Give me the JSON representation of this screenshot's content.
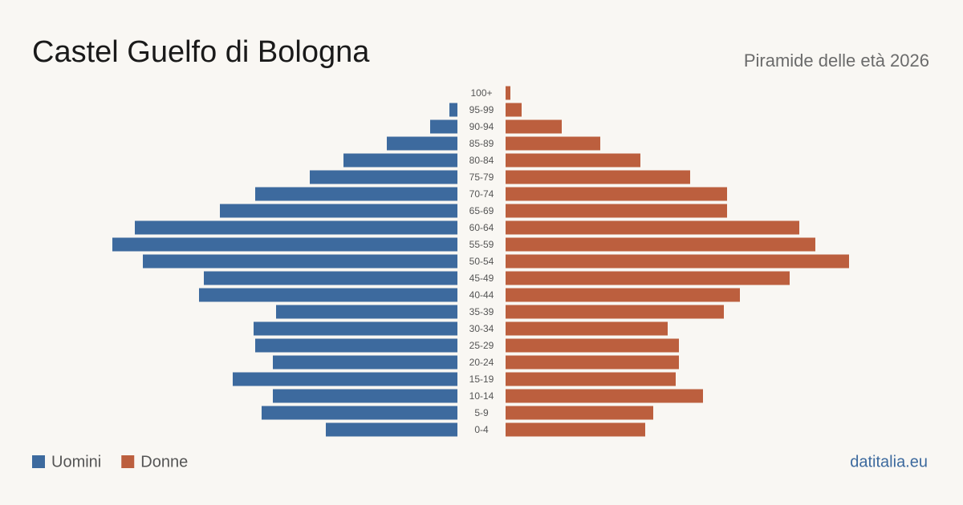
{
  "chart_data": {
    "type": "pyramid",
    "title": "Castel Guelfo di Bologna",
    "subtitle": "Piramide delle età 2026",
    "source": "datitalia.eu",
    "categories": [
      "100+",
      "95-99",
      "90-94",
      "85-89",
      "80-84",
      "75-79",
      "70-74",
      "65-69",
      "60-64",
      "55-59",
      "50-54",
      "45-49",
      "40-44",
      "35-39",
      "30-34",
      "25-29",
      "20-24",
      "15-19",
      "10-14",
      "5-9",
      "0-4"
    ],
    "series": [
      {
        "name": "Uomini",
        "color": "#3d6a9e",
        "values": [
          0,
          5,
          17,
          44,
          71,
          92,
          126,
          148,
          201,
          215,
          196,
          158,
          161,
          113,
          127,
          126,
          115,
          140,
          115,
          122,
          82
        ]
      },
      {
        "name": "Donne",
        "color": "#bc5f3e",
        "values": [
          3,
          10,
          35,
          59,
          84,
          115,
          138,
          138,
          183,
          193,
          214,
          177,
          146,
          136,
          101,
          108,
          108,
          106,
          123,
          92,
          87
        ]
      }
    ]
  }
}
